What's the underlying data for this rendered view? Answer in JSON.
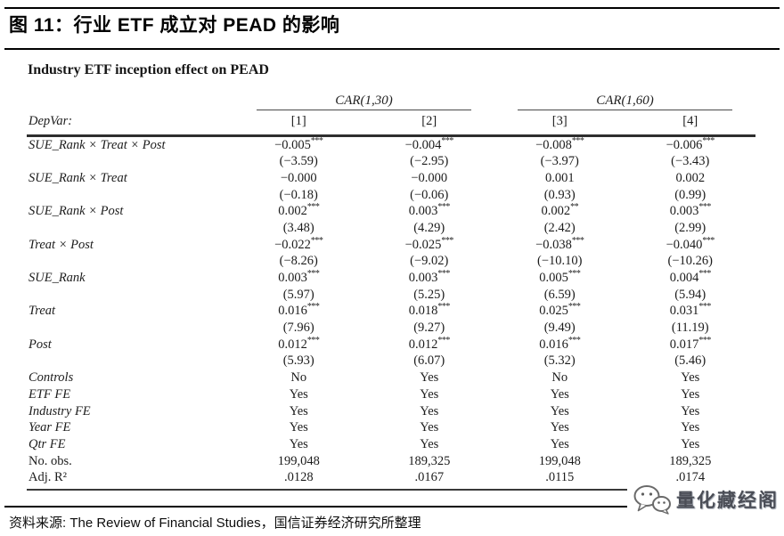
{
  "header": {
    "title": "图 11：行业 ETF 成立对 PEAD 的影响"
  },
  "table": {
    "caption": "Industry ETF inception effect on PEAD",
    "depvar_label": "DepVar:",
    "col_groups": [
      {
        "label": "CAR(1,30)"
      },
      {
        "label": "CAR(1,60)"
      }
    ],
    "columns": [
      "[1]",
      "[2]",
      "[3]",
      "[4]"
    ],
    "coef_rows": [
      {
        "label": "SUE_Rank × Treat × Post",
        "estimates": [
          "−0.005***",
          "−0.004***",
          "−0.008***",
          "−0.006***"
        ],
        "tstats": [
          "(−3.59)",
          "(−2.95)",
          "(−3.97)",
          "(−3.43)"
        ]
      },
      {
        "label": "SUE_Rank × Treat",
        "estimates": [
          "−0.000",
          "−0.000",
          "0.001",
          "0.002"
        ],
        "tstats": [
          "(−0.18)",
          "(−0.06)",
          "(0.93)",
          "(0.99)"
        ]
      },
      {
        "label": "SUE_Rank × Post",
        "estimates": [
          "0.002***",
          "0.003***",
          "0.002**",
          "0.003***"
        ],
        "tstats": [
          "(3.48)",
          "(4.29)",
          "(2.42)",
          "(2.99)"
        ]
      },
      {
        "label": "Treat × Post",
        "estimates": [
          "−0.022***",
          "−0.025***",
          "−0.038***",
          "−0.040***"
        ],
        "tstats": [
          "(−8.26)",
          "(−9.02)",
          "(−10.10)",
          "(−10.26)"
        ]
      },
      {
        "label": "SUE_Rank",
        "estimates": [
          "0.003***",
          "0.003***",
          "0.005***",
          "0.004***"
        ],
        "tstats": [
          "(5.97)",
          "(5.25)",
          "(6.59)",
          "(5.94)"
        ]
      },
      {
        "label": "Treat",
        "estimates": [
          "0.016***",
          "0.018***",
          "0.025***",
          "0.031***"
        ],
        "tstats": [
          "(7.96)",
          "(9.27)",
          "(9.49)",
          "(11.19)"
        ]
      },
      {
        "label": "Post",
        "estimates": [
          "0.012***",
          "0.012***",
          "0.016***",
          "0.017***"
        ],
        "tstats": [
          "(5.93)",
          "(6.07)",
          "(5.32)",
          "(5.46)"
        ]
      }
    ],
    "info_rows": [
      {
        "label": "Controls",
        "italic": true,
        "values": [
          "No",
          "Yes",
          "No",
          "Yes"
        ]
      },
      {
        "label": "ETF FE",
        "italic": true,
        "values": [
          "Yes",
          "Yes",
          "Yes",
          "Yes"
        ]
      },
      {
        "label": "Industry FE",
        "italic": true,
        "values": [
          "Yes",
          "Yes",
          "Yes",
          "Yes"
        ]
      },
      {
        "label": "Year FE",
        "italic": true,
        "values": [
          "Yes",
          "Yes",
          "Yes",
          "Yes"
        ]
      },
      {
        "label": "Qtr FE",
        "italic": true,
        "values": [
          "Yes",
          "Yes",
          "Yes",
          "Yes"
        ]
      },
      {
        "label": "No. obs.",
        "italic": false,
        "values": [
          "199,048",
          "189,325",
          "199,048",
          "189,325"
        ]
      },
      {
        "label": "Adj. R²",
        "italic": false,
        "values": [
          ".0128",
          ".0167",
          ".0115",
          ".0174"
        ]
      }
    ]
  },
  "footer": {
    "source": "资料来源: The Review of Financial Studies，国信证券经济研究所整理",
    "brand": "量化藏经阁",
    "brand_icon": "wechat-chat-bubbles-icon"
  },
  "colors": {
    "text": "#1c1c1c",
    "rule": "#000000",
    "brand_text": "#4b4e57"
  }
}
